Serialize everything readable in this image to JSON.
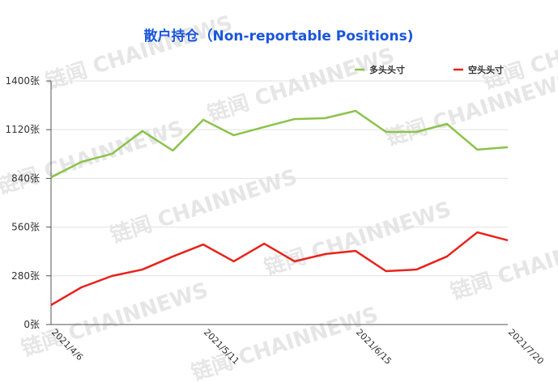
{
  "chart_data": {
    "type": "line",
    "title": "散户持仓（Non-reportable Positions)",
    "watermark": "链闻 CHAINNEWS",
    "categories": [
      "2021/4/6",
      null,
      null,
      null,
      null,
      "2021/5/11",
      null,
      null,
      null,
      null,
      "2021/6/15",
      null,
      null,
      null,
      null,
      "2021/7/20"
    ],
    "series": [
      {
        "name": "多头头寸",
        "color": "#8bc34a",
        "values": [
          846,
          935,
          981,
          1112,
          1000,
          1177,
          1088,
          1135,
          1181,
          1186,
          1228,
          1107,
          1107,
          1153,
          1005,
          1019
        ]
      },
      {
        "name": "空头头寸",
        "color": "#e8221b",
        "values": [
          112,
          214,
          279,
          316,
          391,
          460,
          363,
          465,
          363,
          405,
          423,
          307,
          316,
          391,
          530,
          484
        ]
      }
    ],
    "ylim": [
      0,
      1400
    ],
    "yticks": [
      {
        "value": 0,
        "label": "0张"
      },
      {
        "value": 280,
        "label": "280张"
      },
      {
        "value": 560,
        "label": "560张"
      },
      {
        "value": 840,
        "label": "840张"
      },
      {
        "value": 1120,
        "label": "1120张"
      },
      {
        "value": 1400,
        "label": "1400张"
      }
    ],
    "grid": true,
    "legend": "top-right"
  }
}
